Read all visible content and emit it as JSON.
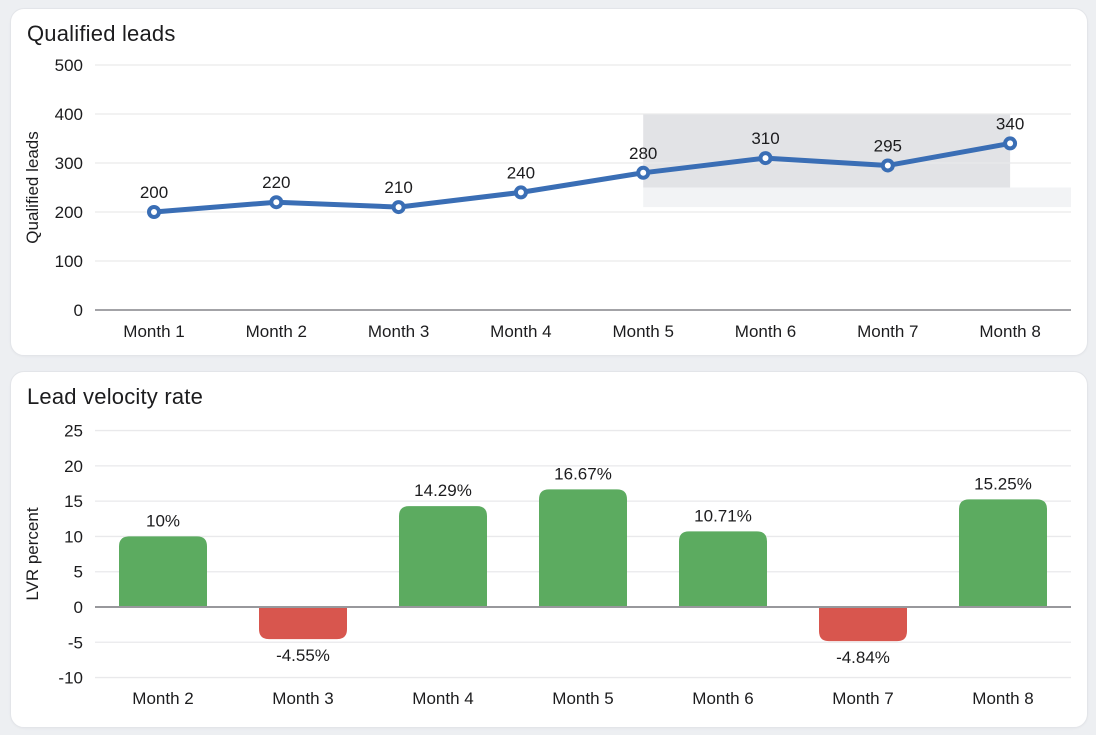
{
  "page": {
    "background": "#edeff2",
    "card_background": "#ffffff"
  },
  "chart_data": [
    {
      "type": "line",
      "title": "Qualified leads",
      "ylabel": "Qualified leads",
      "categories": [
        "Month 1",
        "Month 2",
        "Month 3",
        "Month 4",
        "Month 5",
        "Month 6",
        "Month 7",
        "Month 8"
      ],
      "values": [
        200,
        220,
        210,
        240,
        280,
        310,
        295,
        340
      ],
      "point_labels": [
        "200",
        "220",
        "210",
        "240",
        "280",
        "310",
        "295",
        "340"
      ],
      "yticks": [
        0,
        100,
        200,
        300,
        400,
        500
      ],
      "ylim": [
        0,
        500
      ],
      "grid": true,
      "legend": "none",
      "line_color": "#3a6eb5",
      "marker_fill": "#ffffff",
      "grid_color": "#e9e9eb",
      "axis_line_color": "#a3a3a7",
      "highlight_regions": [
        {
          "from_index": 4,
          "to_index": 7,
          "y_from": 250,
          "y_to": 400,
          "color": "#e2e3e6"
        },
        {
          "from_index": 4,
          "to_index": "plot-right",
          "y_from": 210,
          "y_to": 250,
          "color": "#f2f3f5"
        }
      ]
    },
    {
      "type": "bar",
      "title": "Lead velocity rate",
      "ylabel": "LVR percent",
      "categories": [
        "Month 2",
        "Month 3",
        "Month 4",
        "Month 5",
        "Month 6",
        "Month 7",
        "Month 8"
      ],
      "values": [
        10,
        -4.55,
        14.29,
        16.67,
        10.71,
        -4.84,
        15.25
      ],
      "value_labels": [
        "10%",
        "-4.55%",
        "14.29%",
        "16.67%",
        "10.71%",
        "-4.84%",
        "15.25%"
      ],
      "yticks": [
        -10,
        -5,
        0,
        5,
        10,
        15,
        20,
        25
      ],
      "ylim": [
        -10,
        25
      ],
      "grid": true,
      "legend": "none",
      "positive_color": "#5cab60",
      "negative_color": "#d8564e",
      "grid_color": "#e9e9eb",
      "axis_line_color": "#98989c"
    }
  ]
}
